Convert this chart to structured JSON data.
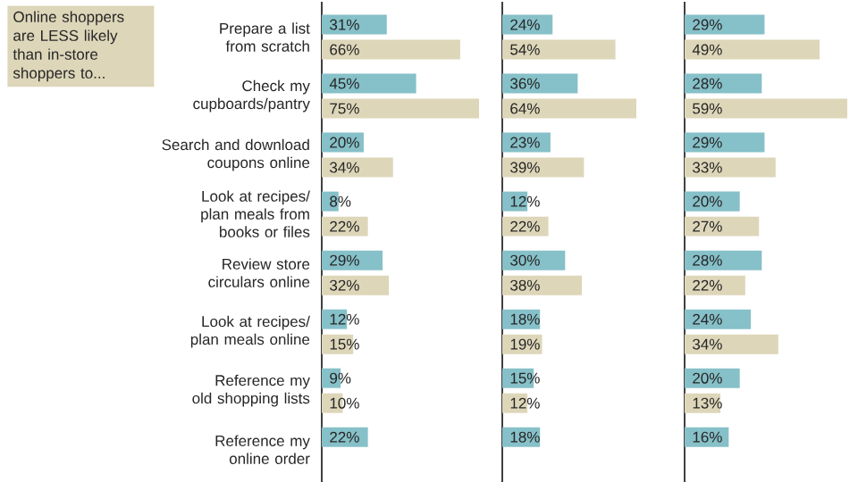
{
  "chart_data": [
    {
      "type": "bar",
      "orientation": "horizontal",
      "categories": [
        "Prepare a list from scratch",
        "Check my cupboards/pantry",
        "Search and download coupons online",
        "Look at recipes/ plan meals from books or files",
        "Review store circulars online",
        "Look at recipes/ plan meals online",
        "Reference my old shopping lists",
        "Reference my online order"
      ],
      "series": [
        {
          "color": "#86c0c8",
          "values": [
            31,
            45,
            20,
            8,
            29,
            12,
            9,
            22
          ],
          "value_labels": [
            "31%",
            "45%",
            "20%",
            "8%",
            "29%",
            "12%",
            "9%",
            "22%"
          ]
        },
        {
          "color": "#ddd6b9",
          "values": [
            66,
            75,
            34,
            22,
            32,
            15,
            10,
            null
          ],
          "value_labels": [
            "66%",
            "75%",
            "34%",
            "22%",
            "32%",
            "15%",
            "10%",
            null
          ]
        }
      ],
      "annotations": [
        "Online shoppers are LESS likely than in-store shoppers to..."
      ]
    },
    {
      "type": "bar",
      "orientation": "horizontal",
      "categories": [
        null,
        null,
        null,
        null,
        null,
        null,
        null,
        null
      ],
      "tick_labels": false,
      "series": [
        {
          "color": "#86c0c8",
          "values": [
            24,
            36,
            23,
            12,
            30,
            18,
            15,
            18
          ],
          "value_labels": [
            "24%",
            "36%",
            "23%",
            "12%",
            "30%",
            "18%",
            "15%",
            "18%"
          ]
        },
        {
          "color": "#ddd6b9",
          "values": [
            54,
            64,
            39,
            22,
            38,
            19,
            12,
            null
          ],
          "value_labels": [
            "54%",
            "64%",
            "39%",
            "22%",
            "38%",
            "19%",
            "12%",
            null
          ]
        }
      ]
    },
    {
      "type": "bar",
      "orientation": "horizontal",
      "categories": [
        null,
        null,
        null,
        null,
        null,
        null,
        null,
        null
      ],
      "tick_labels": false,
      "series": [
        {
          "color": "#86c0c8",
          "values": [
            29,
            28,
            29,
            20,
            28,
            24,
            20,
            16
          ],
          "value_labels": [
            "29%",
            "28%",
            "29%",
            "20%",
            "28%",
            "24%",
            "20%",
            "16%"
          ]
        },
        {
          "color": "#ddd6b9",
          "values": [
            49,
            59,
            33,
            27,
            22,
            34,
            13,
            null
          ],
          "value_labels": [
            "49%",
            "59%",
            "33%",
            "27%",
            "22%",
            "34%",
            "13%",
            null
          ]
        }
      ]
    }
  ]
}
